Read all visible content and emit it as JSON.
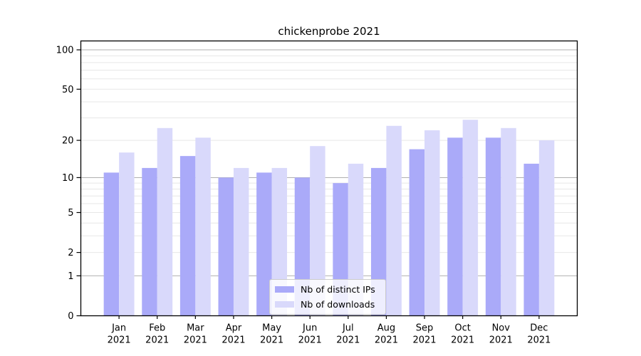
{
  "title": "chickenprobe 2021",
  "chart_data": {
    "type": "bar",
    "title": "chickenprobe 2021",
    "months": [
      "Jan",
      "Feb",
      "Mar",
      "Apr",
      "May",
      "Jun",
      "Jul",
      "Aug",
      "Sep",
      "Oct",
      "Nov",
      "Dec"
    ],
    "year": "2021",
    "series": [
      {
        "name": "Nb of distinct IPs",
        "color": "#aaaaf9",
        "values": [
          11,
          12,
          15,
          10,
          11,
          10,
          9,
          12,
          17,
          21,
          21,
          13
        ]
      },
      {
        "name": "Nb of downloads",
        "color": "#d9d9fb",
        "values": [
          16,
          25,
          21,
          12,
          12,
          18,
          13,
          26,
          24,
          29,
          25,
          20
        ]
      }
    ],
    "yscale": "log1p",
    "ytick_labels": [
      "100",
      "50",
      "20",
      "10",
      "5",
      "2",
      "1",
      "0"
    ],
    "ytick_values": [
      100,
      50,
      20,
      10,
      5,
      2,
      1,
      0
    ],
    "ylim": [
      0,
      117
    ],
    "grid": {
      "major_at": [
        1,
        10,
        100
      ],
      "minor_at": [
        2,
        3,
        4,
        5,
        6,
        7,
        8,
        9,
        20,
        30,
        40,
        50,
        60,
        70,
        80,
        90
      ]
    },
    "legend_position": "lower center"
  },
  "colors": {
    "bar_distinct_ips": "#aaaaf9",
    "bar_downloads": "#d9d9fb",
    "grid_major": "#b0b0b0",
    "grid_minor": "#e7e7e7",
    "axis": "#000000",
    "text": "#000000",
    "background": "#ffffff"
  }
}
